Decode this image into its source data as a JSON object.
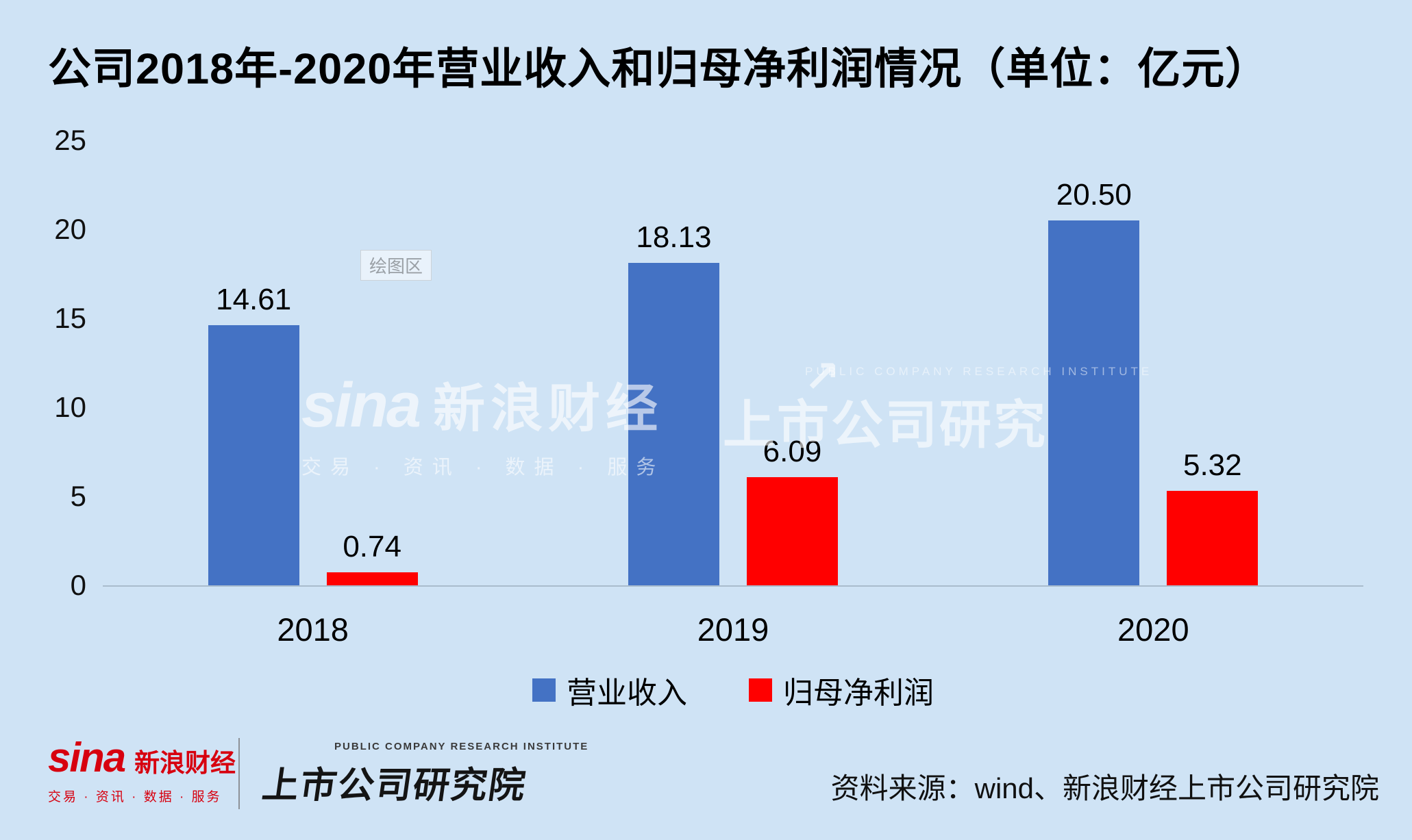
{
  "title": "公司2018年-2020年营业收入和归母净利润情况（单位：亿元）",
  "chart_data": {
    "type": "bar",
    "title": "公司2018年-2020年营业收入和归母净利润情况（单位：亿元）",
    "categories": [
      "2018",
      "2019",
      "2020"
    ],
    "series": [
      {
        "name": "营业收入",
        "color": "#4472C4",
        "values": [
          14.61,
          18.13,
          20.5
        ],
        "labels": [
          "14.61",
          "18.13",
          "20.50"
        ]
      },
      {
        "name": "归母净利润",
        "color": "#FF0000",
        "values": [
          0.74,
          6.09,
          5.32
        ],
        "labels": [
          "0.74",
          "6.09",
          "5.32"
        ]
      }
    ],
    "ylim": [
      0,
      25
    ],
    "yticks": [
      0,
      5,
      10,
      15,
      20,
      25
    ],
    "grid": false,
    "legend_position": "bottom"
  },
  "watermarks": {
    "plot_label": "绘图区",
    "sina_logo": "sina",
    "sina_name": "新浪财经",
    "sina_tagline": "交易 · 资讯 · 数据 · 服务",
    "institute_en": "PUBLIC COMPANY RESEARCH INSTITUTE",
    "institute_cn": "上市公司研究",
    "arrow": "↗"
  },
  "footer": {
    "sina_logo": "sina",
    "sina_name": "新浪财经",
    "sina_tagline": "交易 · 资讯 · 数据 · 服务",
    "institute_en": "PUBLIC COMPANY RESEARCH INSTITUTE",
    "institute_cn": "上市公司研究院",
    "source": "资料来源：wind、新浪财经上市公司研究院"
  },
  "colors": {
    "background": "#CFE3F5",
    "bar_blue": "#4472C4",
    "bar_red": "#FF0000",
    "axis_line": "#A9BCCD",
    "sina_red": "#D7000F",
    "text": "#000000"
  }
}
